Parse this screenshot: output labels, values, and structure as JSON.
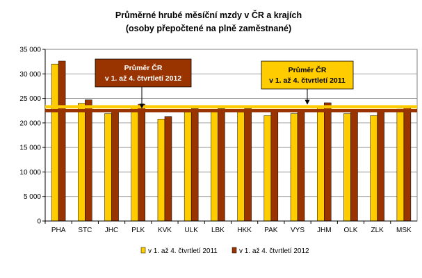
{
  "chart_data": {
    "type": "bar",
    "title": "Průměrné hrubé měsíční mzdy v ČR a krajích",
    "subtitle": "(osoby přepočtené na plně zaměstnané)",
    "categories": [
      "PHA",
      "STC",
      "JHC",
      "PLK",
      "KVK",
      "ULK",
      "LBK",
      "HKK",
      "PAK",
      "VYS",
      "JHM",
      "OLK",
      "ZLK",
      "MSK"
    ],
    "series": [
      {
        "name": "v 1. až 4. čtvrtletí 2011",
        "color": "#ffcc00",
        "values": [
          32000,
          24000,
          21900,
          23500,
          20800,
          22200,
          22300,
          22200,
          21500,
          21900,
          23400,
          21900,
          21500,
          22800
        ]
      },
      {
        "name": "v 1. až 4. čtvrtletí 2012",
        "color": "#993300",
        "values": [
          32600,
          24700,
          22600,
          23800,
          21300,
          22900,
          22900,
          22900,
          22300,
          22600,
          24100,
          22500,
          22300,
          23100
        ]
      }
    ],
    "yticks": [
      0,
      5000,
      10000,
      15000,
      20000,
      25000,
      30000,
      35000
    ],
    "ytick_labels": [
      "0",
      "5 000",
      "10 000",
      "15 000",
      "20 000",
      "25 000",
      "30 000",
      "35 000"
    ],
    "ylim": [
      0,
      35000
    ],
    "grid": true,
    "legend": "bottom",
    "reference_lines": [
      {
        "label_line1": "Průměr ČR",
        "label_line2": "v 1. až 4. čtvrtletí 2011",
        "value": 23300,
        "color": "#ffcc00",
        "text_color": "#000000"
      },
      {
        "label_line1": "Průměr ČR",
        "label_line2": "v 1. až 4. čtvrtletí 2012",
        "value": 22500,
        "color": "#993300",
        "text_color": "#ffffff"
      }
    ]
  }
}
